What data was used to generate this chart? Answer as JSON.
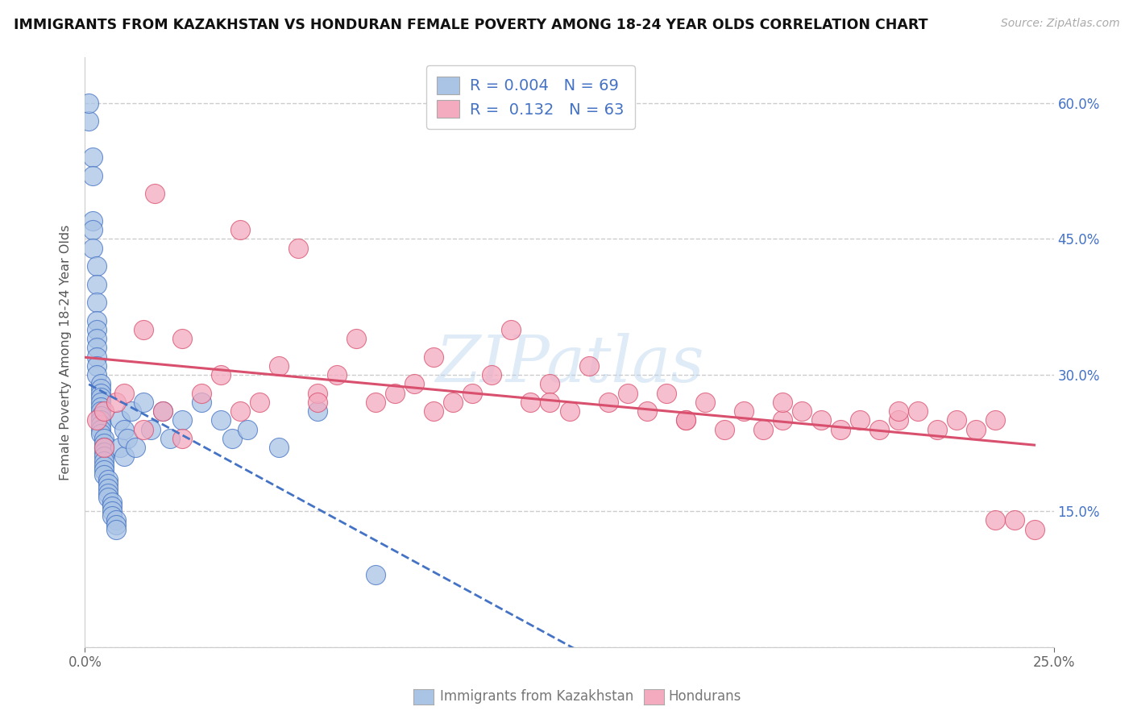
{
  "title": "IMMIGRANTS FROM KAZAKHSTAN VS HONDURAN FEMALE POVERTY AMONG 18-24 YEAR OLDS CORRELATION CHART",
  "source": "Source: ZipAtlas.com",
  "ylabel": "Female Poverty Among 18-24 Year Olds",
  "legend_label1": "Immigrants from Kazakhstan",
  "legend_label2": "Hondurans",
  "xlim": [
    0.0,
    0.25
  ],
  "ylim": [
    0.0,
    0.65
  ],
  "xticks": [
    0.0,
    0.25
  ],
  "xticklabels": [
    "0.0%",
    "25.0%"
  ],
  "yticks": [
    0.0,
    0.15,
    0.3,
    0.45,
    0.6
  ],
  "ytick_labels_right": [
    "",
    "15.0%",
    "30.0%",
    "45.0%",
    "60.0%"
  ],
  "color_kaz": "#aac4e6",
  "color_hon": "#f4aabf",
  "color_kaz_line": "#4472c4",
  "color_hon_line": "#d9506e",
  "bg_color": "#ffffff",
  "grid_color": "#cccccc",
  "kaz_x": [
    0.001,
    0.001,
    0.002,
    0.002,
    0.002,
    0.002,
    0.002,
    0.003,
    0.003,
    0.003,
    0.003,
    0.003,
    0.003,
    0.003,
    0.003,
    0.003,
    0.003,
    0.004,
    0.004,
    0.004,
    0.004,
    0.004,
    0.004,
    0.004,
    0.004,
    0.004,
    0.004,
    0.004,
    0.004,
    0.005,
    0.005,
    0.005,
    0.005,
    0.005,
    0.005,
    0.005,
    0.005,
    0.005,
    0.006,
    0.006,
    0.006,
    0.006,
    0.006,
    0.007,
    0.007,
    0.007,
    0.007,
    0.008,
    0.008,
    0.008,
    0.009,
    0.009,
    0.01,
    0.01,
    0.011,
    0.012,
    0.013,
    0.015,
    0.017,
    0.02,
    0.022,
    0.025,
    0.03,
    0.035,
    0.038,
    0.042,
    0.05,
    0.06,
    0.075
  ],
  "kaz_y": [
    0.58,
    0.6,
    0.54,
    0.52,
    0.47,
    0.46,
    0.44,
    0.42,
    0.4,
    0.38,
    0.36,
    0.35,
    0.34,
    0.33,
    0.32,
    0.31,
    0.3,
    0.29,
    0.285,
    0.28,
    0.275,
    0.27,
    0.265,
    0.26,
    0.255,
    0.25,
    0.245,
    0.24,
    0.235,
    0.23,
    0.225,
    0.22,
    0.215,
    0.21,
    0.205,
    0.2,
    0.195,
    0.19,
    0.185,
    0.18,
    0.175,
    0.17,
    0.165,
    0.16,
    0.155,
    0.15,
    0.145,
    0.14,
    0.135,
    0.13,
    0.25,
    0.22,
    0.24,
    0.21,
    0.23,
    0.26,
    0.22,
    0.27,
    0.24,
    0.26,
    0.23,
    0.25,
    0.27,
    0.25,
    0.23,
    0.24,
    0.22,
    0.26,
    0.08
  ],
  "hon_x": [
    0.003,
    0.005,
    0.008,
    0.01,
    0.015,
    0.018,
    0.02,
    0.025,
    0.03,
    0.035,
    0.04,
    0.045,
    0.05,
    0.055,
    0.06,
    0.065,
    0.07,
    0.075,
    0.08,
    0.085,
    0.09,
    0.095,
    0.1,
    0.105,
    0.11,
    0.115,
    0.12,
    0.125,
    0.13,
    0.135,
    0.14,
    0.145,
    0.15,
    0.155,
    0.16,
    0.165,
    0.17,
    0.175,
    0.18,
    0.185,
    0.19,
    0.195,
    0.2,
    0.205,
    0.21,
    0.215,
    0.22,
    0.225,
    0.23,
    0.235,
    0.005,
    0.015,
    0.025,
    0.04,
    0.06,
    0.09,
    0.12,
    0.155,
    0.18,
    0.21,
    0.235,
    0.24,
    0.245
  ],
  "hon_y": [
    0.25,
    0.26,
    0.27,
    0.28,
    0.35,
    0.5,
    0.26,
    0.34,
    0.28,
    0.3,
    0.46,
    0.27,
    0.31,
    0.44,
    0.28,
    0.3,
    0.34,
    0.27,
    0.28,
    0.29,
    0.32,
    0.27,
    0.28,
    0.3,
    0.35,
    0.27,
    0.29,
    0.26,
    0.31,
    0.27,
    0.28,
    0.26,
    0.28,
    0.25,
    0.27,
    0.24,
    0.26,
    0.24,
    0.25,
    0.26,
    0.25,
    0.24,
    0.25,
    0.24,
    0.25,
    0.26,
    0.24,
    0.25,
    0.24,
    0.25,
    0.22,
    0.24,
    0.23,
    0.26,
    0.27,
    0.26,
    0.27,
    0.25,
    0.27,
    0.26,
    0.14,
    0.14,
    0.13
  ]
}
